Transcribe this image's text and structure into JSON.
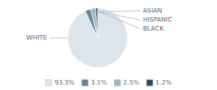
{
  "chart_data": {
    "type": "pie",
    "categories": [
      "WHITE",
      "ASIAN",
      "HISPANIC",
      "BLACK"
    ],
    "values": [
      93.3,
      3.1,
      2.5,
      1.2
    ],
    "value_labels": [
      "93.3%",
      "3.1%",
      "2.5%",
      "1.2%"
    ],
    "colors": [
      "#dce4ec",
      "#5b85a0",
      "#9fb8c8",
      "#2c4a63"
    ],
    "legend": "bottom"
  }
}
